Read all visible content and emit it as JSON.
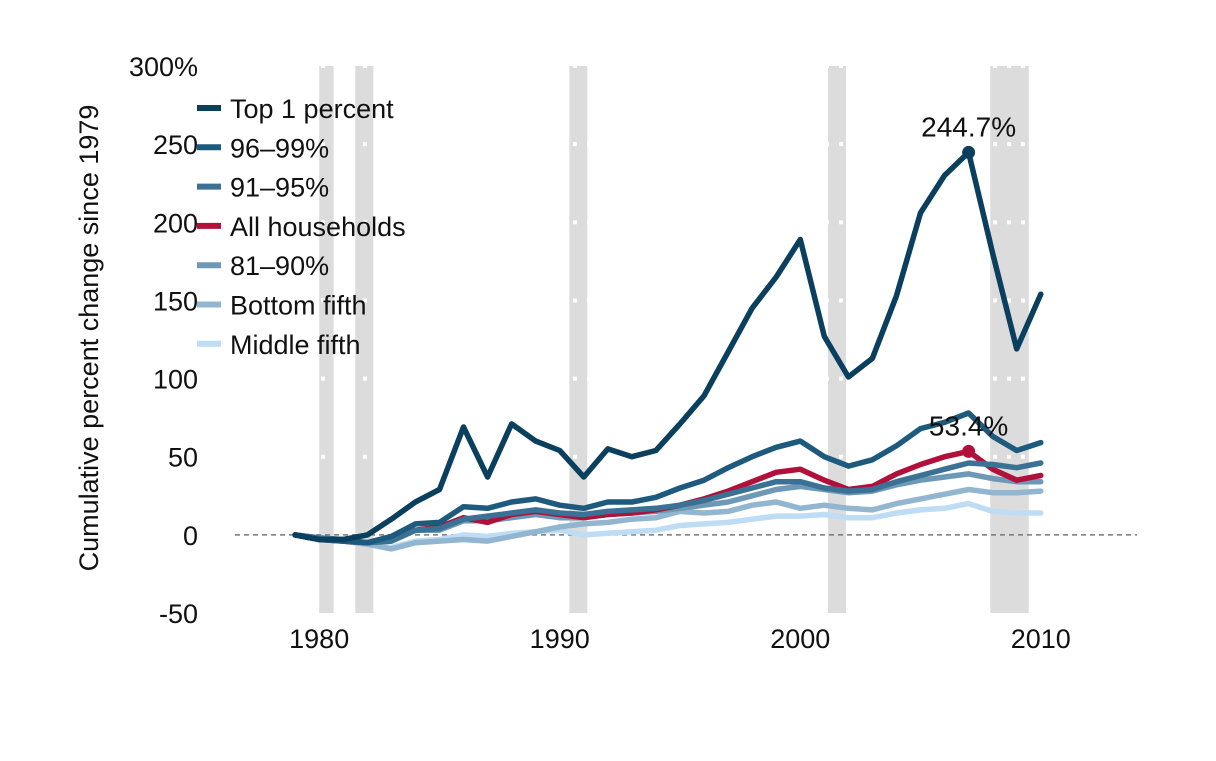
{
  "chart_data": {
    "type": "line",
    "xlabel": "",
    "ylabel": "Cumulative percent change since 1979",
    "xlim": [
      1976.5,
      2014
    ],
    "ylim": [
      -50,
      300
    ],
    "x_ticks": [
      1980,
      1990,
      2000,
      2010
    ],
    "y_ticks": [
      {
        "value": 300,
        "label": "300%"
      },
      {
        "value": 250,
        "label": "250"
      },
      {
        "value": 200,
        "label": "200"
      },
      {
        "value": 150,
        "label": "150"
      },
      {
        "value": 100,
        "label": "100"
      },
      {
        "value": 50,
        "label": "50"
      },
      {
        "value": 0,
        "label": "0"
      },
      {
        "value": -50,
        "label": "-50"
      }
    ],
    "grid": "horizontal dotted",
    "zero_line": "dashed",
    "legend_position": "top-left",
    "recessions": [
      [
        1980.0,
        1980.6
      ],
      [
        1981.5,
        1982.25
      ],
      [
        1990.4,
        1991.15
      ],
      [
        2001.15,
        2001.9
      ],
      [
        2007.9,
        2009.5
      ]
    ],
    "x": [
      1979,
      1980,
      1981,
      1982,
      1983,
      1984,
      1985,
      1986,
      1987,
      1988,
      1989,
      1990,
      1991,
      1992,
      1993,
      1994,
      1995,
      1996,
      1997,
      1998,
      1999,
      2000,
      2001,
      2002,
      2003,
      2004,
      2005,
      2006,
      2007,
      2008,
      2009,
      2010
    ],
    "series": [
      {
        "name": "Top 1 percent",
        "color": "#0a3f5e",
        "values": [
          0,
          -3,
          -3,
          0,
          10,
          21,
          29,
          69,
          37,
          71,
          60,
          54,
          37,
          55,
          50,
          54,
          71,
          89,
          117,
          145,
          165,
          189,
          127,
          101,
          113,
          153,
          206,
          230,
          244.7,
          180,
          119,
          154
        ]
      },
      {
        "name": "96–99%",
        "color": "#1d5a7d",
        "values": [
          0,
          -3,
          -4,
          -5,
          -1,
          7,
          8,
          18,
          17,
          21,
          23,
          19,
          17,
          21,
          21,
          24,
          30,
          35,
          43,
          50,
          56,
          60,
          50,
          44,
          48,
          57,
          68,
          72,
          78,
          63,
          54,
          59
        ]
      },
      {
        "name": "91–95%",
        "color": "#3a7194",
        "values": [
          0,
          -2,
          -3,
          -5,
          -4,
          3,
          4,
          10,
          12,
          14,
          16,
          14,
          13,
          15,
          16,
          17,
          19,
          22,
          26,
          30,
          34,
          34,
          30,
          28,
          29,
          34,
          38,
          42,
          46,
          45,
          43,
          46
        ]
      },
      {
        "name": "All households",
        "color": "#b0103a",
        "values": [
          0,
          -3,
          -4,
          -5,
          -3,
          3,
          5,
          11,
          8,
          13,
          15,
          13,
          11,
          13,
          14,
          16,
          19,
          23,
          28,
          34,
          40,
          42,
          35,
          29,
          31,
          39,
          45,
          50,
          53.4,
          42,
          35,
          38
        ]
      },
      {
        "name": "81–90%",
        "color": "#6d99b7",
        "values": [
          0,
          -2,
          -3,
          -5,
          -4,
          3,
          3,
          9,
          9,
          11,
          13,
          11,
          11,
          13,
          14,
          15,
          17,
          19,
          21,
          25,
          29,
          31,
          29,
          27,
          28,
          32,
          35,
          37,
          39,
          36,
          34,
          34
        ]
      },
      {
        "name": "Bottom fifth",
        "color": "#92b6cf",
        "values": [
          0,
          -2,
          -4,
          -6,
          -9,
          -5,
          -4,
          -3,
          -4,
          -1,
          2,
          5,
          7,
          8,
          10,
          11,
          15,
          14,
          15,
          19,
          21,
          17,
          19,
          17,
          16,
          20,
          23,
          26,
          29,
          27,
          27,
          28
        ]
      },
      {
        "name": "Middle fifth",
        "color": "#bfdcf5",
        "values": [
          0,
          -2,
          -4,
          -6,
          -8,
          -4,
          -3,
          0,
          -1,
          1,
          2,
          3,
          0,
          1,
          2,
          3,
          6,
          7,
          8,
          10,
          12,
          12,
          13,
          11,
          11,
          14,
          16,
          17,
          20,
          15,
          14,
          14
        ]
      }
    ],
    "annotations": [
      {
        "text": "244.7%",
        "x": 2007,
        "y": 244.7,
        "color": "#0a3f5e"
      },
      {
        "text": "53.4%",
        "x": 2007,
        "y": 53.4,
        "color": "#b0103a"
      }
    ]
  }
}
